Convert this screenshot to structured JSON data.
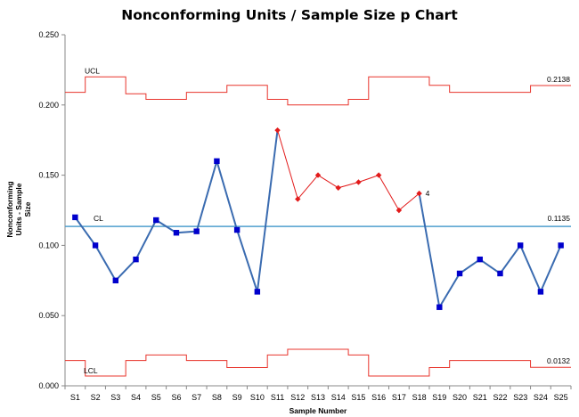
{
  "chart_data": {
    "type": "line",
    "title": "Nonconforming Units / Sample Size p Chart",
    "xlabel": "Sample Number",
    "ylabel_lines": [
      "Nonconforming",
      "Units - Sample",
      "Size"
    ],
    "categories": [
      "S1",
      "S2",
      "S3",
      "S4",
      "S5",
      "S6",
      "S7",
      "S8",
      "S9",
      "S10",
      "S11",
      "S12",
      "S13",
      "S14",
      "S15",
      "S16",
      "S17",
      "S18",
      "S19",
      "S20",
      "S21",
      "S22",
      "S23",
      "S24",
      "S25"
    ],
    "ylim": [
      0,
      0.25
    ],
    "yticks": [
      "0.000",
      "0.050",
      "0.100",
      "0.150",
      "0.200",
      "0.250"
    ],
    "grid": false,
    "series": [
      {
        "name": "",
        "values": [
          0.12,
          0.1,
          0.075,
          0.09,
          0.118,
          0.109,
          0.11,
          0.16,
          0.111,
          0.067,
          0.182,
          0.133,
          0.15,
          0.141,
          0.145,
          0.15,
          0.125,
          0.137,
          0.056,
          0.08,
          0.09,
          0.08,
          0.1,
          0.067,
          0.1
        ],
        "flagged_segment": [
          10,
          17
        ],
        "flag_label": "4"
      }
    ],
    "center_line": {
      "label": "CL",
      "value": 0.1135,
      "value_label": "0.1135"
    },
    "ucl": {
      "label": "UCL",
      "value_label": "0.2138",
      "values": [
        0.209,
        0.22,
        0.22,
        0.208,
        0.204,
        0.204,
        0.209,
        0.209,
        0.214,
        0.214,
        0.204,
        0.2,
        0.2,
        0.2,
        0.204,
        0.22,
        0.22,
        0.22,
        0.214,
        0.209,
        0.209,
        0.209,
        0.209,
        0.2138,
        0.2138
      ]
    },
    "lcl": {
      "label": "LCL",
      "value_label": "0.0132",
      "values": [
        0.018,
        0.007,
        0.007,
        0.018,
        0.022,
        0.022,
        0.018,
        0.018,
        0.013,
        0.013,
        0.022,
        0.026,
        0.026,
        0.026,
        0.022,
        0.007,
        0.007,
        0.007,
        0.013,
        0.018,
        0.018,
        0.018,
        0.018,
        0.0132,
        0.0132
      ]
    },
    "colors": {
      "main_line": "#3a6bb0",
      "main_marker": "#0000cc",
      "flag": "#e21a1a",
      "center_line": "#4f9fce",
      "limits": "#e8342c",
      "axis": "#888888"
    }
  }
}
